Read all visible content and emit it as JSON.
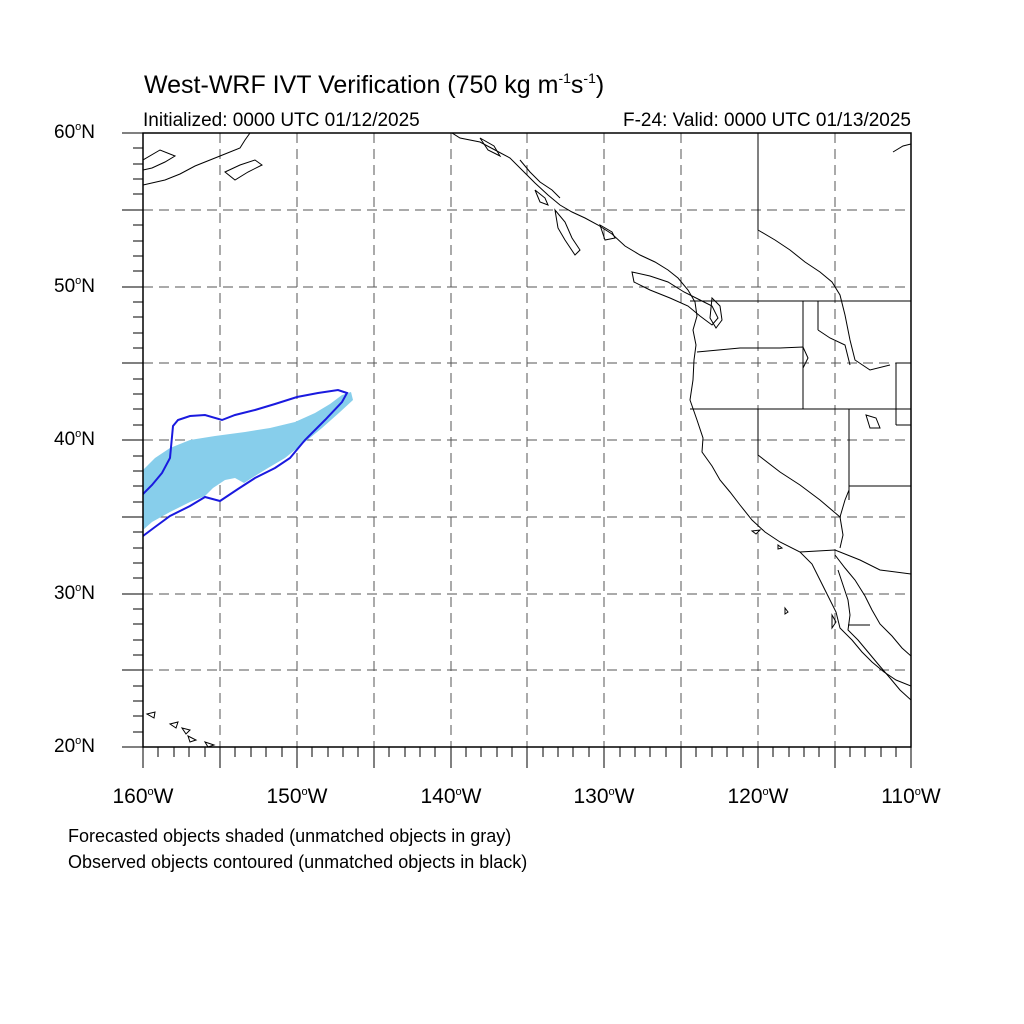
{
  "header": {
    "title_main": "West-WRF IVT Verification (750 kg m",
    "title_exp1": "-1",
    "title_mid": "s",
    "title_exp2": "-1",
    "title_end": ")",
    "initialized": "Initialized: 0000 UTC 01/12/2025",
    "valid": "F-24: Valid: 0000 UTC 01/13/2025"
  },
  "axes": {
    "lat_labels": [
      {
        "value": "60",
        "suffix": "N"
      },
      {
        "value": "50",
        "suffix": "N"
      },
      {
        "value": "40",
        "suffix": "N"
      },
      {
        "value": "30",
        "suffix": "N"
      },
      {
        "value": "20",
        "suffix": "N"
      }
    ],
    "lon_labels": [
      {
        "value": "160",
        "suffix": "W"
      },
      {
        "value": "150",
        "suffix": "W"
      },
      {
        "value": "140",
        "suffix": "W"
      },
      {
        "value": "130",
        "suffix": "W"
      },
      {
        "value": "120",
        "suffix": "W"
      },
      {
        "value": "110",
        "suffix": "W"
      }
    ],
    "degree_symbol": "o"
  },
  "map": {
    "extent": {
      "lon_min": -160,
      "lon_max": -110,
      "lat_min": 20,
      "lat_max": 60
    },
    "grid": "dashed every 5 degrees",
    "forecast_object_color": "#87ceeb",
    "observed_contour_color": "#1a1adf",
    "coastline_color": "#000000"
  },
  "legend": {
    "line1": "Forecasted objects shaded (unmatched objects in gray)",
    "line2": "Observed objects contoured (unmatched objects in black)"
  }
}
